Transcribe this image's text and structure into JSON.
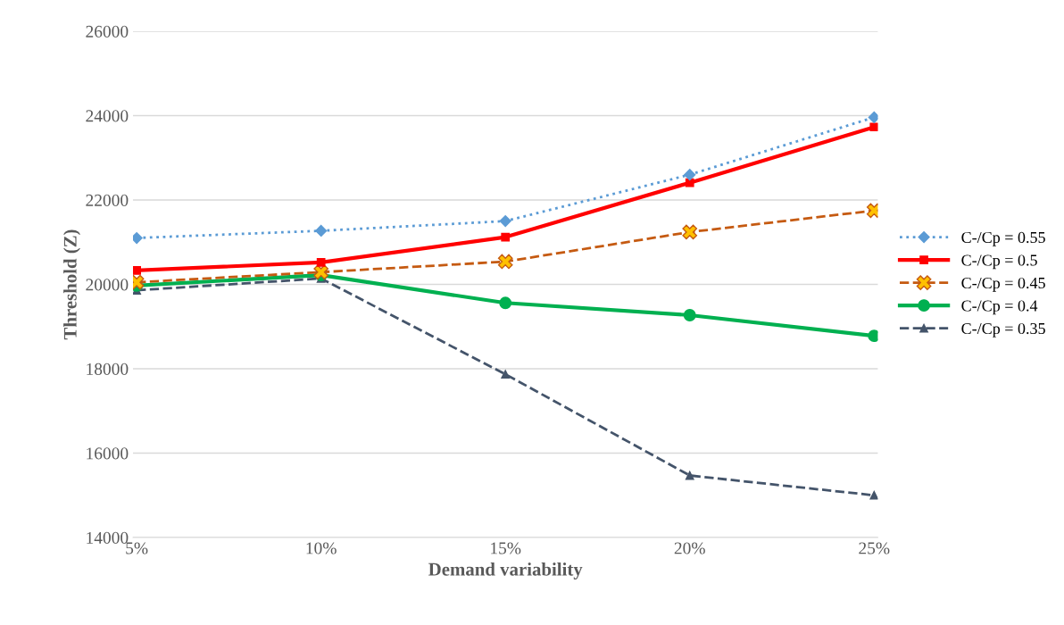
{
  "chart_data": {
    "type": "line",
    "xlabel": "Demand variability",
    "ylabel": "Threshold (Z)",
    "categories": [
      "5%",
      "10%",
      "15%",
      "20%",
      "25%"
    ],
    "ylim": [
      14000,
      26000
    ],
    "yticks": [
      14000,
      16000,
      18000,
      20000,
      22000,
      24000,
      26000
    ],
    "grid": "y",
    "legend": "right",
    "series": [
      {
        "name": "C-/Cp = 0.55",
        "color": "#5b9bd5",
        "marker": "diamond",
        "line_style": "dotted",
        "values": [
          21100,
          21270,
          21500,
          22600,
          23960
        ]
      },
      {
        "name": "C-/Cp = 0.5",
        "color": "#ff0000",
        "marker": "square",
        "line_style": "solid",
        "values": [
          20330,
          20520,
          21120,
          22410,
          23730
        ]
      },
      {
        "name": "C-/Cp = 0.45",
        "color": "#c55a11",
        "marker": "cross",
        "line_style": "dashed",
        "values": [
          20050,
          20290,
          20540,
          21240,
          21750
        ]
      },
      {
        "name": "C-/Cp = 0.4",
        "color": "#00b050",
        "marker": "circle",
        "line_style": "solid",
        "values": [
          19970,
          20220,
          19560,
          19270,
          18780
        ]
      },
      {
        "name": "C-/Cp = 0.35",
        "color": "#44546a",
        "marker": "triangle",
        "line_style": "dashed",
        "values": [
          19860,
          20140,
          17870,
          15470,
          15000
        ]
      }
    ]
  }
}
